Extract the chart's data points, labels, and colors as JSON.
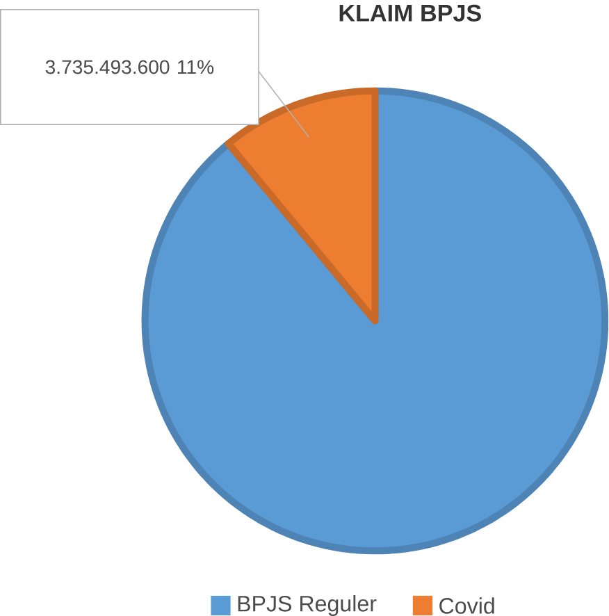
{
  "chart_data": {
    "type": "pie",
    "title": "KLAIM BPJS",
    "categories": [
      "BPJS Reguler",
      "Covid"
    ],
    "values": [
      89,
      11
    ],
    "colors": [
      "#5b9bd5",
      "#ed7d31"
    ],
    "value_labels": [
      null,
      "3.735.493.600 11%"
    ],
    "legend": "bottom"
  }
}
